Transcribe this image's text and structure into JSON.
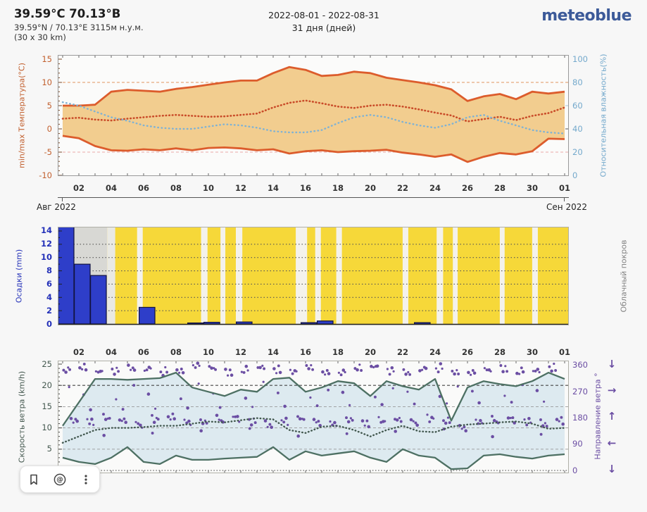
{
  "header": {
    "title": "39.59°С 70.13°В",
    "subtitle": "39.59°N / 70.13°E   3115м н.у.м.",
    "resolution": "(30 x 30 km)",
    "date_range": "2022-08-01 - 2022-08-31",
    "duration": "31 дня (дней)",
    "logo": "meteoblue"
  },
  "axis": {
    "x_tick_labels": [
      "02",
      "04",
      "06",
      "08",
      "10",
      "12",
      "14",
      "16",
      "18",
      "20",
      "22",
      "24",
      "26",
      "28",
      "30",
      "01"
    ],
    "x_tick_days": [
      2,
      4,
      6,
      8,
      10,
      12,
      14,
      16,
      18,
      20,
      22,
      24,
      26,
      28,
      30,
      32
    ],
    "month_left": "Авг 2022",
    "month_right": "Сен 2022"
  },
  "colors": {
    "temp_band_fill": "#f2cd8f",
    "temp_line": "#dc5c2c",
    "temp_mean_dotted": "#c94b28",
    "humidity_dotted": "#7fb2d4",
    "temp_axis_label": "#c2602f",
    "humidity_axis_label": "#74a9cc",
    "precip_bar": "#2e3ec9",
    "precip_axis_label": "#2431b8",
    "cloud_yellow": "#f6d839",
    "cloud_gray": "#d8d8d4",
    "cloud_clear_stripe": "#f4f2ec",
    "cloud_axis_label": "#828282",
    "wind_line": "#4d7063",
    "wind_fill": "#d9e8ee",
    "wind_mean_dotted": "#42584f",
    "wind_direction_dots": "#6b4ea3",
    "logo_blue": "#3c5a99"
  },
  "chart_data": [
    {
      "id": "temperature_humidity",
      "type": "area",
      "left_axis_label": "min/max Температура(°C)",
      "right_axis_label": "Относительная влажность(%)",
      "x_range_days": [
        1,
        32
      ],
      "ylim_left": [
        -10,
        15
      ],
      "ylim_right": [
        0,
        100
      ],
      "yticks_left": [
        15,
        10,
        5,
        0,
        -5,
        -10
      ],
      "yticks_right": [
        100,
        80,
        60,
        40,
        20,
        0
      ],
      "gridlines_left_values": [
        10,
        5,
        0,
        -5
      ],
      "series": [
        {
          "name": "max_temperature_c",
          "style": "solid",
          "values": [
            5,
            5,
            5.2,
            8,
            8.4,
            8.2,
            8,
            8.6,
            9,
            9.5,
            10,
            10.4,
            10.4,
            12,
            13.3,
            12.7,
            11.4,
            11.6,
            12.3,
            12,
            11,
            10.5,
            10,
            9.4,
            8.5,
            6,
            7,
            7.5,
            6.4,
            8,
            7.6,
            8
          ]
        },
        {
          "name": "min_temperature_c",
          "style": "solid",
          "values": [
            -1.5,
            -2,
            -3.7,
            -4.6,
            -4.7,
            -4.4,
            -4.6,
            -4.2,
            -4.6,
            -4.1,
            -4,
            -4.2,
            -4.6,
            -4.4,
            -5.3,
            -4.8,
            -4.6,
            -5,
            -4.8,
            -4.7,
            -4.5,
            -5.1,
            -5.5,
            -6,
            -5.5,
            -7.1,
            -6,
            -5.2,
            -5.5,
            -4.8,
            -2.1,
            -2.2
          ]
        },
        {
          "name": "mean_temperature_c",
          "style": "dotted",
          "values": [
            2.2,
            2.4,
            2,
            1.8,
            2.2,
            2.5,
            2.8,
            3,
            2.8,
            2.6,
            2.7,
            3,
            3.3,
            4.6,
            5.6,
            6.1,
            5.5,
            4.8,
            4.5,
            5,
            5.2,
            4.8,
            4.2,
            3.5,
            2.9,
            1.6,
            2.1,
            2.6,
            1.9,
            2.8,
            3.4,
            4.6
          ]
        },
        {
          "name": "relative_humidity_pct",
          "style": "dotted",
          "axis": "right",
          "values": [
            63,
            60,
            55,
            50,
            47,
            43,
            41,
            40,
            40,
            42,
            44,
            43,
            41,
            38,
            37,
            37,
            39,
            45,
            50,
            52,
            50,
            46,
            43,
            41,
            44,
            50,
            52,
            47,
            43,
            39,
            37,
            36
          ]
        }
      ]
    },
    {
      "id": "precipitation_cloudcover",
      "type": "bar",
      "left_axis_label": "Осадки (mm)",
      "right_axis_label": "Облачный покров",
      "yticks": [
        14,
        12,
        10,
        8,
        6,
        4,
        2,
        0
      ],
      "ylim": [
        0,
        14.6
      ],
      "categories_days": [
        1,
        2,
        3,
        4,
        5,
        6,
        7,
        8,
        9,
        10,
        11,
        12,
        13,
        14,
        15,
        16,
        17,
        18,
        19,
        20,
        21,
        22,
        23,
        24,
        25,
        26,
        27,
        28,
        29,
        30,
        31
      ],
      "values_mm": [
        15,
        9,
        7.3,
        0,
        0,
        2.5,
        0,
        0,
        0.15,
        0.25,
        0,
        0.3,
        0,
        0,
        0,
        0.2,
        0.45,
        0,
        0,
        0,
        0,
        0,
        0.2,
        0,
        0,
        0,
        0,
        0,
        0,
        0,
        0
      ],
      "cloud_background": {
        "base": "overcast_yellow",
        "gray_segments": [
          {
            "from_day": 1,
            "to_day": 4.05,
            "color": "#d8d8d4"
          },
          {
            "from_day": 4.05,
            "to_day": 4.55,
            "color": "#e9e9e4"
          }
        ],
        "clear_stripes_days": [
          [
            5.9,
            6.25
          ],
          [
            9.85,
            10.25
          ],
          [
            11.05,
            11.35
          ],
          [
            12.0,
            12.4
          ],
          [
            15.7,
            16.4
          ],
          [
            16.9,
            17.25
          ],
          [
            18.2,
            18.55
          ],
          [
            22.3,
            22.65
          ],
          [
            24.4,
            24.8
          ],
          [
            25.4,
            25.7
          ],
          [
            28.3,
            28.6
          ],
          [
            30.3,
            30.65
          ]
        ]
      }
    },
    {
      "id": "wind",
      "type": "line",
      "left_axis_label": "Скорость ветра (km/h)",
      "right_axis_label": "Направление ветра °",
      "yticks_left": [
        25,
        20,
        15,
        10,
        5,
        0
      ],
      "yticks_right": [
        360,
        270,
        180,
        90,
        0
      ],
      "ylim_left": [
        0,
        25.8
      ],
      "ylim_right": [
        0,
        377
      ],
      "series": [
        {
          "name": "max_wind_kmh",
          "style": "solid",
          "values": [
            10.5,
            16,
            21.5,
            21.5,
            21.3,
            21.5,
            21.7,
            23,
            19.5,
            18.5,
            17.5,
            19,
            18.5,
            21.5,
            21.8,
            18.5,
            19.5,
            21,
            20.5,
            17.5,
            21,
            19.8,
            19,
            21.5,
            11.7,
            19.5,
            21,
            20.3,
            19.8,
            21,
            23,
            21.5
          ]
        },
        {
          "name": "mean_wind_kmh",
          "style": "dotted",
          "values": [
            6.5,
            8,
            9.5,
            10,
            10,
            10.2,
            10.5,
            10.5,
            11,
            11.5,
            11.3,
            11.8,
            12.3,
            12,
            9.5,
            8.8,
            10.3,
            10.5,
            9.5,
            8,
            9.5,
            10.5,
            9.2,
            9,
            10.3,
            10.8,
            11,
            11.3,
            11.5,
            11,
            9.8,
            10
          ]
        },
        {
          "name": "min_wind_kmh",
          "style": "solid",
          "values": [
            3,
            2,
            1.5,
            3,
            5.5,
            2,
            1.5,
            3.5,
            2.5,
            2.5,
            2.8,
            3,
            3.2,
            5.5,
            2.5,
            4.5,
            3.5,
            4,
            4.5,
            3,
            2,
            5,
            3.5,
            3,
            0.3,
            0.5,
            3.5,
            3.8,
            3.2,
            2.8,
            3.5,
            3.8
          ]
        }
      ],
      "direction": {
        "primary_deg": [
          345,
          350,
          335,
          340,
          350,
          345,
          338,
          342,
          355,
          348,
          335,
          340,
          352,
          345,
          338,
          350,
          342,
          336,
          348,
          352,
          340,
          335,
          345,
          350,
          338,
          330,
          342,
          348,
          335,
          340,
          352
        ],
        "secondary_deg": [
          175,
          168,
          180,
          172,
          160,
          178,
          185,
          170,
          165,
          175,
          182,
          168,
          158,
          172,
          180,
          165,
          170,
          178,
          162,
          170,
          175,
          168,
          180,
          172,
          150,
          165,
          172,
          178,
          168,
          162,
          175
        ]
      },
      "direction_arrows": [
        "↓",
        "→",
        "↑",
        "←",
        "↓"
      ]
    }
  ],
  "toolbar": {
    "buttons": [
      {
        "name": "bookmark"
      },
      {
        "name": "at-mention"
      },
      {
        "name": "more-options"
      }
    ]
  }
}
